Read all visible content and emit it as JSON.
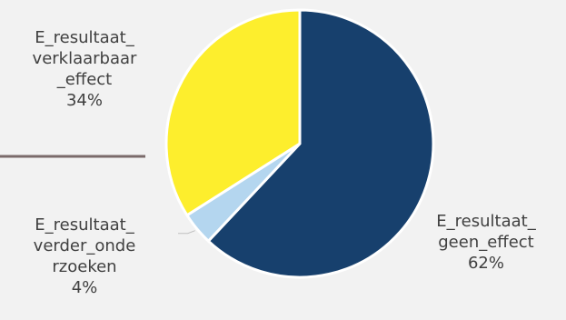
{
  "chart_data": {
    "type": "pie",
    "slices": [
      {
        "label_lines": [
          "E_resultaat_",
          "geen_effect"
        ],
        "value": 62,
        "value_label": "62%",
        "color": "#17406d"
      },
      {
        "label_lines": [
          "E_resultaat_",
          "verder_onde",
          "rzoeken"
        ],
        "value": 4,
        "value_label": "4%",
        "color": "#b4d6ef"
      },
      {
        "label_lines": [
          "E_resultaat_",
          "verklaarbaar",
          "_effect"
        ],
        "value": 34,
        "value_label": "34%",
        "color": "#fdee2d"
      }
    ],
    "start_angle_deg": 0,
    "direction": "clockwise",
    "legend": "none",
    "label_color": "#404040",
    "separator_color": "#ffffff"
  }
}
